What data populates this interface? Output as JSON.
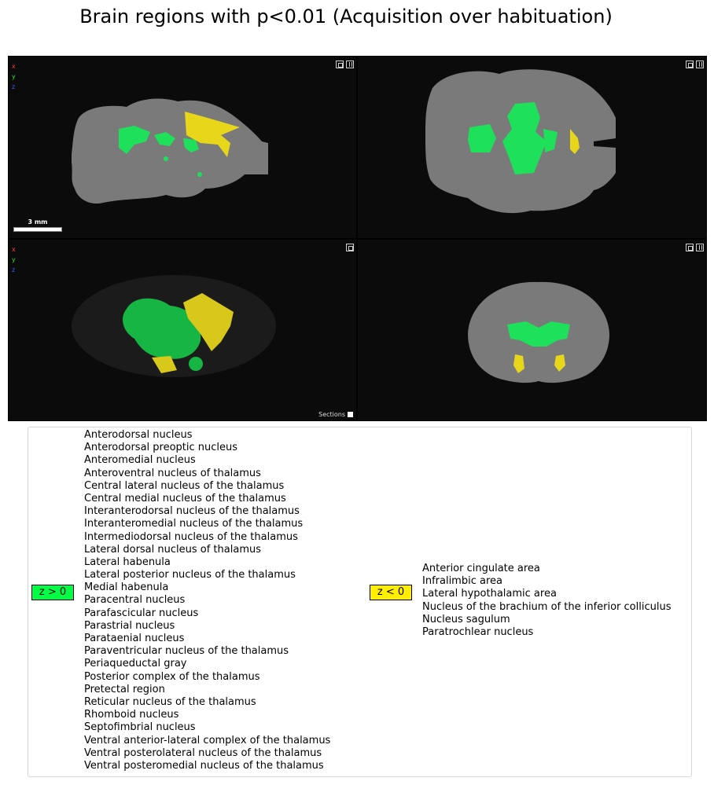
{
  "title": "Brain regions with p<0.01 (Acquisition over habituation)",
  "viewer": {
    "axis_labels": [
      "x",
      "y",
      "z"
    ],
    "scale_bar_label": "3 mm",
    "sections_label": "Sections",
    "sections_checked": false
  },
  "colors": {
    "positive": "#00ff44",
    "negative": "#ffee00",
    "brain": "#7a7a7a",
    "background": "#0b0b0b"
  },
  "legend": {
    "positive": {
      "label": "z > 0",
      "regions": [
        "Anterodorsal nucleus",
        "Anterodorsal preoptic nucleus",
        "Anteromedial nucleus",
        "Anteroventral nucleus of thalamus",
        "Central lateral nucleus of the thalamus",
        "Central medial nucleus of the thalamus",
        "Interanterodorsal nucleus of the thalamus",
        "Interanteromedial nucleus of the thalamus",
        "Intermediodorsal nucleus of the thalamus",
        "Lateral dorsal nucleus of thalamus",
        "Lateral habenula",
        "Lateral posterior nucleus of the thalamus",
        "Medial habenula",
        "Paracentral nucleus",
        "Parafascicular nucleus",
        "Parastrial nucleus",
        "Parataenial nucleus",
        "Paraventricular nucleus of the thalamus",
        "Periaqueductal gray",
        "Posterior complex of the thalamus",
        "Pretectal region",
        "Reticular nucleus of the thalamus",
        "Rhomboid nucleus",
        "Septofimbrial nucleus",
        "Ventral anterior-lateral complex of the thalamus",
        "Ventral posterolateral nucleus of the thalamus",
        "Ventral posteromedial nucleus of the thalamus"
      ]
    },
    "negative": {
      "label": "z < 0",
      "regions": [
        "Anterior cingulate area",
        "Infralimbic area",
        "Lateral hypothalamic area",
        "Nucleus of the brachium of the inferior colliculus",
        "Nucleus sagulum",
        "Paratrochlear nucleus"
      ]
    }
  }
}
